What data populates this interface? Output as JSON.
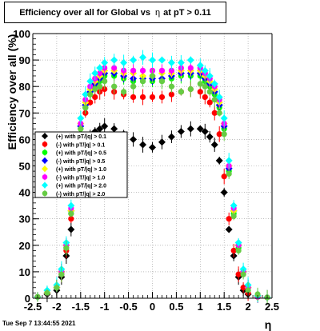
{
  "chart_data": {
    "type": "scatter",
    "title": {
      "main": "Efficiency over all for Global vs",
      "xvar": "η",
      "suffix": "at pT > 0.11"
    },
    "xlabel": "η",
    "ylabel": "Efficiency over all (%)",
    "xlim": [
      -2.5,
      2.5
    ],
    "ylim": [
      0,
      100
    ],
    "xticks": [
      "-2.5",
      "-2",
      "-1.5",
      "-1",
      "-0.5",
      "0",
      "0.5",
      "1",
      "1.5",
      "2",
      "2.5"
    ],
    "yticks": [
      "0",
      "10",
      "20",
      "30",
      "40",
      "50",
      "60",
      "70",
      "80",
      "90",
      "100"
    ],
    "grid": true,
    "legend_position": "middle-left",
    "series": [
      {
        "name": "(+) with pT/|q| > 0.1",
        "color": "#000000",
        "marker": "diamond",
        "x": [
          -2.4,
          -2.2,
          -2.0,
          -1.9,
          -1.8,
          -1.7,
          -1.6,
          -1.5,
          -1.4,
          -1.3,
          -1.2,
          -1.1,
          -1.0,
          -0.8,
          -0.6,
          -0.4,
          -0.2,
          0.0,
          0.2,
          0.4,
          0.6,
          0.8,
          1.0,
          1.1,
          1.2,
          1.3,
          1.4,
          1.5,
          1.6,
          1.7,
          1.8,
          1.9,
          2.0,
          2.2,
          2.4
        ],
        "y": [
          0.5,
          1.5,
          3,
          8,
          16,
          26,
          40,
          52,
          58,
          61,
          63,
          64,
          65,
          64,
          62,
          60,
          58,
          57,
          59,
          61,
          63,
          64,
          64,
          63,
          61,
          58,
          52,
          40,
          26,
          16,
          8,
          3,
          1.5,
          0.5,
          0.3
        ]
      },
      {
        "name": "(-) with pT/|q| > 0.1",
        "color": "#ff0000",
        "marker": "circle",
        "x": [
          -2.4,
          -2.2,
          -2.0,
          -1.9,
          -1.8,
          -1.7,
          -1.6,
          -1.5,
          -1.4,
          -1.3,
          -1.2,
          -1.1,
          -1.0,
          -0.8,
          -0.6,
          -0.4,
          -0.2,
          0.0,
          0.2,
          0.4,
          0.6,
          0.8,
          1.0,
          1.1,
          1.2,
          1.3,
          1.4,
          1.5,
          1.6,
          1.7,
          1.8,
          1.9,
          2.0,
          2.2,
          2.4
        ],
        "y": [
          0.5,
          2,
          4,
          9,
          18,
          30,
          46,
          62,
          70,
          74,
          76,
          78,
          79,
          78,
          77,
          76,
          76,
          76,
          76,
          77,
          78,
          79,
          78,
          76,
          74,
          70,
          62,
          46,
          30,
          18,
          9,
          4,
          2,
          0.5,
          0.3
        ]
      },
      {
        "name": "(+) with pT/|q| > 0.5",
        "color": "#00ff00",
        "marker": "circle",
        "x": [
          -2.4,
          -2.2,
          -2.0,
          -1.9,
          -1.8,
          -1.7,
          -1.6,
          -1.5,
          -1.4,
          -1.3,
          -1.2,
          -1.1,
          -1.0,
          -0.8,
          -0.6,
          -0.4,
          -0.2,
          0.0,
          0.2,
          0.4,
          0.6,
          0.8,
          1.0,
          1.1,
          1.2,
          1.3,
          1.4,
          1.5,
          1.6,
          1.7,
          1.8,
          1.9,
          2.0,
          2.2,
          2.4
        ],
        "y": [
          0.5,
          2,
          4,
          10,
          19,
          32,
          48,
          64,
          72,
          77,
          80,
          82,
          84,
          84,
          83,
          82,
          82,
          82,
          82,
          83,
          84,
          84,
          84,
          82,
          80,
          77,
          72,
          64,
          48,
          32,
          19,
          10,
          4,
          0.5,
          0.3
        ]
      },
      {
        "name": "(-) with pT/|q| > 0.5",
        "color": "#0000ff",
        "marker": "diamond",
        "x": [
          -2.4,
          -2.2,
          -2.0,
          -1.9,
          -1.8,
          -1.7,
          -1.6,
          -1.5,
          -1.4,
          -1.3,
          -1.2,
          -1.1,
          -1.0,
          -0.8,
          -0.6,
          -0.4,
          -0.2,
          0.0,
          0.2,
          0.4,
          0.6,
          0.8,
          1.0,
          1.1,
          1.2,
          1.3,
          1.4,
          1.5,
          1.6,
          1.7,
          1.8,
          1.9,
          2.0,
          2.2,
          2.4
        ],
        "y": [
          0.5,
          2,
          4,
          10,
          20,
          33,
          49,
          65,
          73,
          78,
          81,
          83,
          85,
          85,
          84,
          83,
          83,
          83,
          83,
          84,
          85,
          85,
          85,
          83,
          81,
          78,
          73,
          65,
          49,
          33,
          20,
          10,
          4,
          0.5,
          0.3
        ]
      },
      {
        "name": "(+) with pT/|q| > 1.0",
        "color": "#ffff00",
        "marker": "diamond",
        "x": [
          -2.4,
          -2.2,
          -2.0,
          -1.9,
          -1.8,
          -1.7,
          -1.6,
          -1.5,
          -1.4,
          -1.3,
          -1.2,
          -1.1,
          -1.0,
          -0.8,
          -0.6,
          -0.4,
          -0.2,
          0.0,
          0.2,
          0.4,
          0.6,
          0.8,
          1.0,
          1.1,
          1.2,
          1.3,
          1.4,
          1.5,
          1.6,
          1.7,
          1.8,
          1.9,
          2.0,
          2.2,
          2.4
        ],
        "y": [
          0.5,
          2,
          4,
          10,
          20,
          33,
          50,
          66,
          74,
          79,
          82,
          84,
          86,
          86,
          85,
          85,
          84,
          84,
          85,
          85,
          86,
          86,
          86,
          84,
          82,
          79,
          74,
          66,
          50,
          33,
          20,
          10,
          4,
          0.5,
          0.3
        ]
      },
      {
        "name": "(-) with pT/|q| > 1.0",
        "color": "#ff00ff",
        "marker": "circle",
        "x": [
          -2.4,
          -2.2,
          -2.0,
          -1.9,
          -1.8,
          -1.7,
          -1.6,
          -1.5,
          -1.4,
          -1.3,
          -1.2,
          -1.1,
          -1.0,
          -0.8,
          -0.6,
          -0.4,
          -0.2,
          0.0,
          0.2,
          0.4,
          0.6,
          0.8,
          1.0,
          1.1,
          1.2,
          1.3,
          1.4,
          1.5,
          1.6,
          1.7,
          1.8,
          1.9,
          2.0,
          2.2,
          2.4
        ],
        "y": [
          0.5,
          2,
          4,
          10,
          20,
          34,
          50,
          66,
          75,
          80,
          83,
          85,
          87,
          87,
          86,
          86,
          86,
          86,
          86,
          86,
          87,
          87,
          87,
          85,
          83,
          80,
          75,
          66,
          50,
          34,
          20,
          10,
          4,
          0.5,
          0.3
        ]
      },
      {
        "name": "(+) with pT/|q| > 2.0",
        "color": "#00ffff",
        "marker": "diamond",
        "x": [
          -2.4,
          -2.2,
          -2.0,
          -1.9,
          -1.8,
          -1.7,
          -1.6,
          -1.5,
          -1.4,
          -1.3,
          -1.2,
          -1.1,
          -1.0,
          -0.8,
          -0.6,
          -0.4,
          -0.2,
          0.0,
          0.2,
          0.4,
          0.6,
          0.8,
          1.0,
          1.1,
          1.2,
          1.3,
          1.4,
          1.5,
          1.6,
          1.7,
          1.8,
          1.9,
          2.0,
          2.2,
          2.4
        ],
        "y": [
          0.5,
          3,
          5,
          11,
          21,
          35,
          52,
          68,
          77,
          82,
          85,
          87,
          89,
          90,
          89,
          90,
          91,
          90,
          90,
          89,
          89,
          90,
          88,
          86,
          84,
          81,
          76,
          68,
          52,
          35,
          21,
          11,
          5,
          1,
          0.3
        ]
      },
      {
        "name": "(-) with pT/|q| > 2.0",
        "color": "#66cc44",
        "marker": "circle",
        "x": [
          -2.4,
          -2.2,
          -2.0,
          -1.9,
          -1.8,
          -1.7,
          -1.6,
          -1.5,
          -1.4,
          -1.3,
          -1.2,
          -1.1,
          -1.0,
          -0.8,
          -0.6,
          -0.4,
          -0.2,
          0.0,
          0.2,
          0.4,
          0.6,
          0.8,
          1.0,
          1.1,
          1.2,
          1.3,
          1.4,
          1.5,
          1.6,
          1.7,
          1.8,
          1.9,
          2.0,
          2.2,
          2.4
        ],
        "y": [
          0.5,
          2,
          4,
          9,
          19,
          32,
          48,
          64,
          72,
          77,
          79,
          80,
          82,
          80,
          78,
          80,
          82,
          84,
          82,
          80,
          78,
          79,
          81,
          80,
          78,
          75,
          70,
          62,
          47,
          31,
          18,
          9,
          3,
          1.5,
          0.3
        ]
      }
    ]
  },
  "footer": {
    "timestamp": "Tue Sep  7 13:44:55 2021"
  }
}
